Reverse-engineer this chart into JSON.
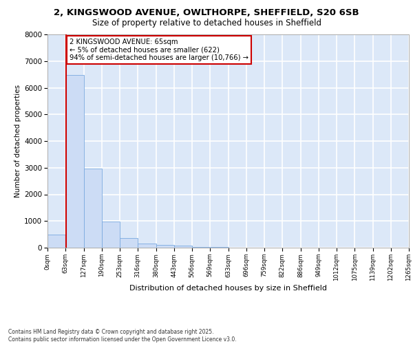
{
  "title1": "2, KINGSWOOD AVENUE, OWLTHORPE, SHEFFIELD, S20 6SB",
  "title2": "Size of property relative to detached houses in Sheffield",
  "xlabel": "Distribution of detached houses by size in Sheffield",
  "ylabel": "Number of detached properties",
  "bar_color": "#ccdcf5",
  "bar_edge_color": "#7aaae0",
  "background_color": "#dce8f8",
  "grid_color": "#ffffff",
  "bins": [
    0,
    63,
    127,
    190,
    253,
    316,
    380,
    443,
    506,
    569,
    633,
    696,
    759,
    822,
    886,
    949,
    1012,
    1075,
    1139,
    1202,
    1265
  ],
  "bin_labels": [
    "0sqm",
    "63sqm",
    "127sqm",
    "190sqm",
    "253sqm",
    "316sqm",
    "380sqm",
    "443sqm",
    "506sqm",
    "569sqm",
    "633sqm",
    "696sqm",
    "759sqm",
    "822sqm",
    "886sqm",
    "949sqm",
    "1012sqm",
    "1075sqm",
    "1139sqm",
    "1202sqm",
    "1265sqm"
  ],
  "counts": [
    500,
    6480,
    2970,
    970,
    350,
    150,
    100,
    75,
    25,
    15,
    10,
    8,
    5,
    4,
    3,
    2,
    2,
    1,
    1,
    1
  ],
  "property_size": 65,
  "annotation_line1": "2 KINGSWOOD AVENUE: 65sqm",
  "annotation_line2": "← 5% of detached houses are smaller (622)",
  "annotation_line3": "94% of semi-detached houses are larger (10,766) →",
  "annotation_box_color": "#ffffff",
  "annotation_border_color": "#cc0000",
  "red_line_color": "#cc0000",
  "ylim": [
    0,
    8000
  ],
  "yticks": [
    0,
    1000,
    2000,
    3000,
    4000,
    5000,
    6000,
    7000,
    8000
  ],
  "footer1": "Contains HM Land Registry data © Crown copyright and database right 2025.",
  "footer2": "Contains public sector information licensed under the Open Government Licence v3.0.",
  "fig_bg": "#ffffff"
}
